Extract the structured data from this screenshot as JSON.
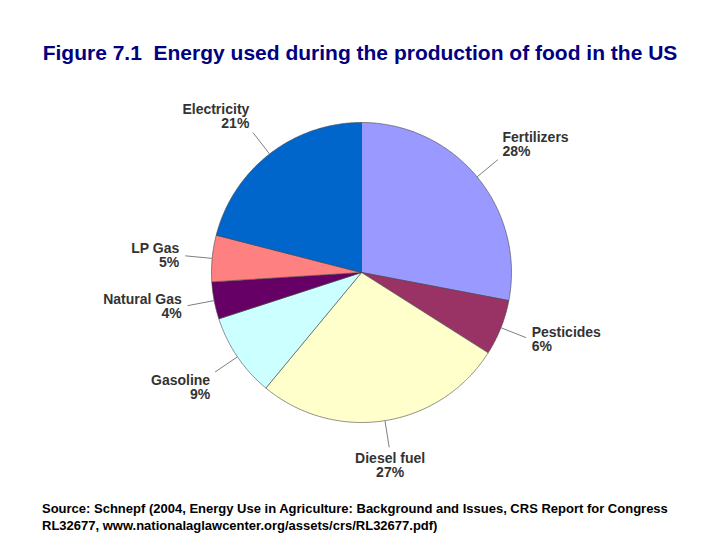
{
  "chart_data": {
    "type": "pie",
    "title": "Figure 7.1  Energy used during the production of food in the US",
    "categories": [
      "Fertilizers",
      "Pesticides",
      "Diesel fuel",
      "Gasoline",
      "Natural Gas",
      "LP Gas",
      "Electricity"
    ],
    "values": [
      28,
      6,
      27,
      9,
      4,
      5,
      21
    ],
    "value_labels": [
      "28%",
      "6%",
      "27%",
      "9%",
      "4%",
      "5%",
      "21%"
    ],
    "colors": [
      "#9999FF",
      "#993366",
      "#FFFFCC",
      "#CCFFFF",
      "#660066",
      "#FF8080",
      "#0066CC"
    ],
    "data_labels": true,
    "caption": "Source: Schnepf (2004, Energy Use in Agriculture: Background and Issues, CRS Report for Congress RL32677, www.nationalaglawcenter.org/assets/crs/RL32677.pdf)"
  }
}
